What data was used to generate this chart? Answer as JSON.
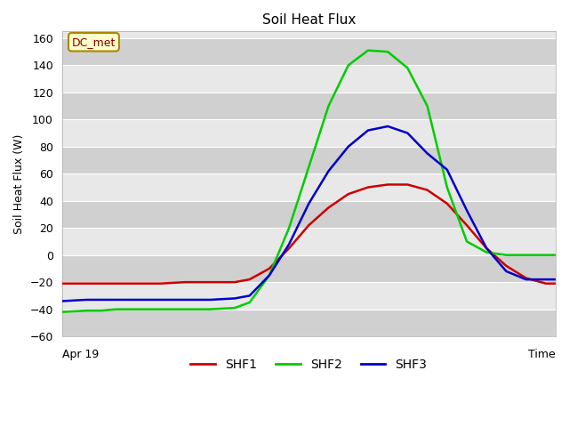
{
  "title": "Soil Heat Flux",
  "ylabel": "Soil Heat Flux (W)",
  "xlabel": "Time",
  "xlim": [
    0,
    100
  ],
  "ylim": [
    -60,
    165
  ],
  "yticks": [
    -60,
    -40,
    -20,
    0,
    20,
    40,
    60,
    80,
    100,
    120,
    140,
    160
  ],
  "x_label_left": "Apr 19",
  "annotation": "DC_met",
  "figure_bg": "#ffffff",
  "plot_bg_light": "#e8e8e8",
  "plot_bg_dark": "#d8d8d8",
  "grid_color": "#ffffff",
  "series": {
    "SHF1": {
      "color": "#cc0000",
      "x": [
        0,
        5,
        8,
        11,
        14,
        17,
        20,
        25,
        30,
        35,
        38,
        42,
        46,
        50,
        54,
        58,
        62,
        66,
        70,
        74,
        78,
        82,
        86,
        90,
        94,
        98,
        100
      ],
      "y": [
        -21,
        -21,
        -21,
        -21,
        -21,
        -21,
        -21,
        -20,
        -20,
        -20,
        -18,
        -10,
        5,
        22,
        35,
        45,
        50,
        52,
        52,
        48,
        38,
        22,
        5,
        -8,
        -17,
        -21,
        -21
      ]
    },
    "SHF2": {
      "color": "#00cc00",
      "x": [
        0,
        5,
        8,
        11,
        14,
        17,
        20,
        25,
        30,
        35,
        38,
        42,
        46,
        50,
        54,
        58,
        62,
        66,
        70,
        74,
        78,
        82,
        86,
        90,
        94,
        98,
        100
      ],
      "y": [
        -42,
        -41,
        -41,
        -40,
        -40,
        -40,
        -40,
        -40,
        -40,
        -39,
        -35,
        -15,
        20,
        65,
        110,
        140,
        151,
        150,
        138,
        110,
        50,
        10,
        2,
        0,
        0,
        0,
        0
      ]
    },
    "SHF3": {
      "color": "#0000cc",
      "x": [
        0,
        5,
        8,
        11,
        14,
        17,
        20,
        25,
        30,
        35,
        38,
        42,
        46,
        50,
        54,
        58,
        62,
        66,
        70,
        74,
        78,
        82,
        86,
        90,
        94,
        98,
        100
      ],
      "y": [
        -34,
        -33,
        -33,
        -33,
        -33,
        -33,
        -33,
        -33,
        -33,
        -32,
        -30,
        -15,
        8,
        38,
        62,
        80,
        92,
        95,
        90,
        75,
        63,
        33,
        5,
        -12,
        -18,
        -18,
        -18
      ]
    }
  },
  "legend_items": [
    "SHF1",
    "SHF2",
    "SHF3"
  ],
  "legend_colors": [
    "#cc0000",
    "#00cc00",
    "#0000cc"
  ],
  "line_width": 1.8
}
